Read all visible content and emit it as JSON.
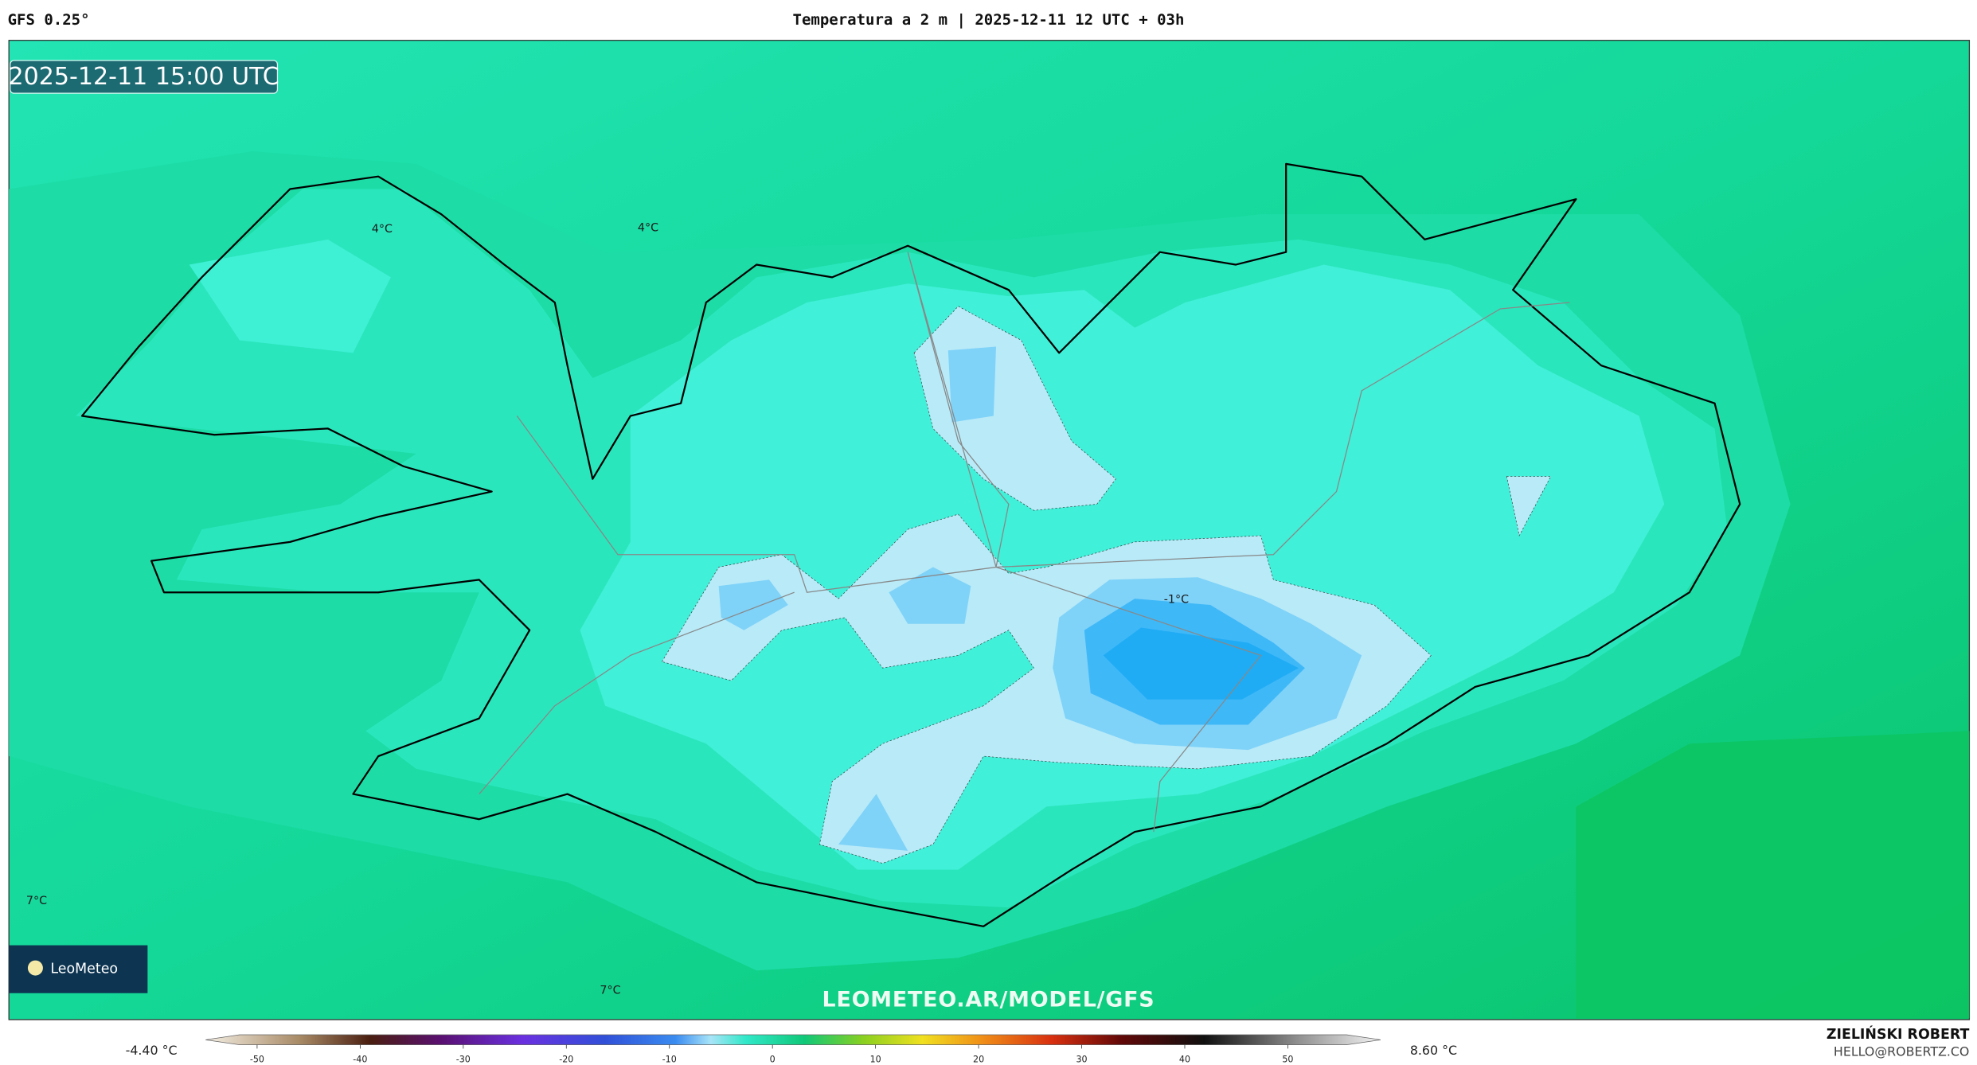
{
  "header": {
    "model": "GFS 0.25°",
    "title": "Temperatura a 2 m | 2025-12-11 12 UTC + 03h"
  },
  "map": {
    "valid_time": "2025-12-11 15:00 UTC",
    "labels": [
      "4°C",
      "4°C",
      "-1°C",
      "7°C",
      "7°C"
    ],
    "watermark": "LEOMETEO.AR/MODEL/GFS",
    "logo": "LeoMeteo"
  },
  "colorbar": {
    "min_label": "-4.40 °C",
    "max_label": "8.60 °C",
    "lim": [
      -55,
      59
    ],
    "ticks": [
      -50,
      -40,
      -30,
      -20,
      -10,
      0,
      10,
      20,
      30,
      40,
      50
    ]
  },
  "credits": {
    "author": "ZIELIŃSKI ROBERT",
    "contact": "HELLO@ROBERTZ.CO"
  }
}
